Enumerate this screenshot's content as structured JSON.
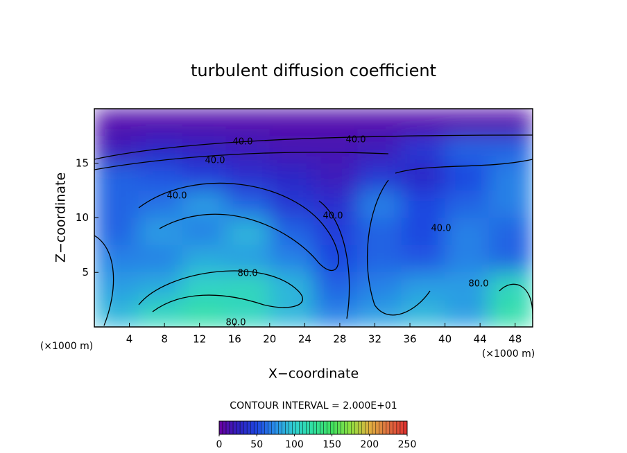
{
  "chart_data": {
    "type": "heatmap",
    "title": "turbulent diffusion coefficient",
    "x_label": "X−coordinate",
    "y_label": "Z−coordinate",
    "x_unit": "(×1000 m)",
    "contour_interval": "CONTOUR INTERVAL = 2.000E+01",
    "xlim": [
      0,
      50
    ],
    "ylim": [
      0,
      20
    ],
    "xticks": [
      4,
      8,
      12,
      16,
      20,
      24,
      28,
      32,
      36,
      40,
      44,
      48
    ],
    "yticks": [
      5,
      10,
      15
    ],
    "x": [
      2.5,
      7.5,
      12.5,
      17.5,
      22.5,
      27.5,
      32.5,
      37.5,
      42.5,
      47.5
    ],
    "y": [
      18.75,
      16.25,
      13.75,
      11.25,
      8.75,
      6.25,
      3.75,
      1.25
    ],
    "z": [
      [
        10,
        10,
        10,
        10,
        10,
        10,
        10,
        10,
        10,
        10
      ],
      [
        20,
        30,
        25,
        20,
        15,
        15,
        20,
        40,
        60,
        60
      ],
      [
        60,
        55,
        45,
        35,
        30,
        20,
        40,
        30,
        50,
        70
      ],
      [
        60,
        65,
        80,
        60,
        40,
        35,
        70,
        50,
        60,
        70
      ],
      [
        60,
        80,
        70,
        90,
        60,
        45,
        60,
        50,
        70,
        60
      ],
      [
        70,
        70,
        85,
        80,
        70,
        50,
        60,
        55,
        70,
        60
      ],
      [
        80,
        85,
        105,
        110,
        90,
        60,
        70,
        80,
        80,
        110
      ],
      [
        90,
        110,
        120,
        110,
        90,
        70,
        80,
        90,
        80,
        120
      ]
    ],
    "contour_labels": [
      {
        "value": 40,
        "label": "40.0"
      },
      {
        "value": 40,
        "label": "40.0"
      },
      {
        "value": 40,
        "label": "40.0"
      },
      {
        "value": 40,
        "label": "40.0"
      },
      {
        "value": 40,
        "label": "40.0"
      },
      {
        "value": 40,
        "label": "40.0"
      },
      {
        "value": 80,
        "label": "80.0"
      },
      {
        "value": 80,
        "label": "80.0"
      },
      {
        "value": 80,
        "label": "80.0"
      }
    ],
    "colorbar": {
      "lim": [
        0,
        250
      ],
      "ticks": [
        0,
        50,
        100,
        150,
        200,
        250
      ]
    }
  }
}
